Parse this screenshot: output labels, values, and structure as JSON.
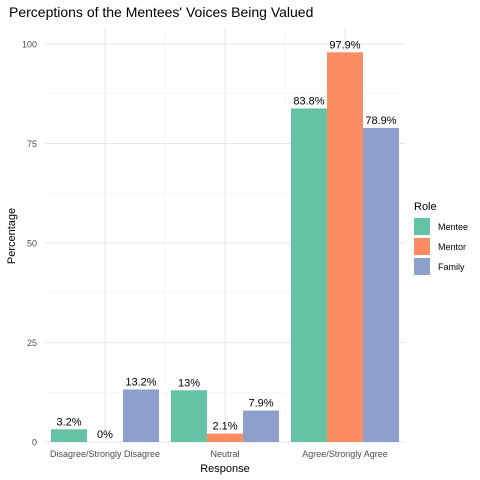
{
  "chart_data": {
    "type": "bar",
    "title": "Perceptions of the Mentees' Voices Being Valued",
    "xlabel": "Response",
    "ylabel": "Percentage",
    "ylim": [
      0,
      104
    ],
    "yticks": [
      0,
      25,
      50,
      75,
      100
    ],
    "grid": true,
    "legend_position": "right",
    "legend_title": "Role",
    "categories": [
      "Disagree/Strongly Disagree",
      "Neutral",
      "Agree/Strongly Agree"
    ],
    "series": [
      {
        "name": "Mentee",
        "color": "#66C2A5",
        "values": [
          3.2,
          13,
          83.8
        ],
        "labels": [
          "3.2%",
          "13%",
          "83.8%"
        ]
      },
      {
        "name": "Mentor",
        "color": "#FC8D62",
        "values": [
          0,
          2.1,
          97.9
        ],
        "labels": [
          "0%",
          "2.1%",
          "97.9%"
        ]
      },
      {
        "name": "Family",
        "color": "#8DA0CB",
        "values": [
          13.2,
          7.9,
          78.9
        ],
        "labels": [
          "13.2%",
          "7.9%",
          "78.9%"
        ]
      }
    ]
  }
}
